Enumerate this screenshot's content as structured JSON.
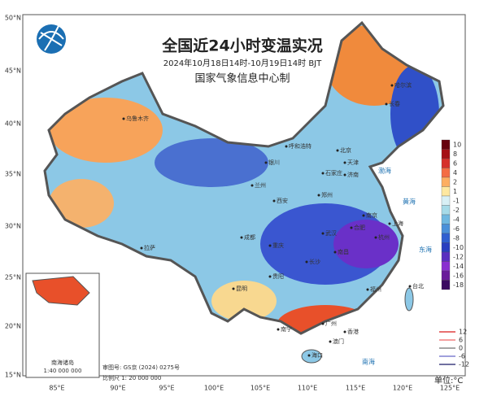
{
  "header": {
    "title": "全国近24小时变温实况",
    "subtitle": "2024年10月18日14时-10月19日14时 BJT",
    "org": "国家气象信息中心制"
  },
  "lat_labels": [
    "50°N",
    "45°N",
    "40°N",
    "35°N",
    "30°N",
    "25°N",
    "20°N",
    "15°N"
  ],
  "lon_labels": [
    "85°E",
    "90°E",
    "95°E",
    "100°E",
    "105°E",
    "110°E",
    "115°E",
    "120°E",
    "125°E"
  ],
  "colorbar": {
    "values": [
      10,
      8,
      6,
      4,
      2,
      1,
      -1,
      -2,
      -4,
      -6,
      -8,
      -10,
      -12,
      -14,
      -16,
      -18
    ],
    "colors": [
      "#67000d",
      "#a50f15",
      "#d6302a",
      "#f46d43",
      "#fdae61",
      "#fee8a0",
      "#d8f0f5",
      "#a6dbe8",
      "#6fb8e0",
      "#4a90d9",
      "#3060d0",
      "#2a3fc0",
      "#5a2fc0",
      "#8a30d0",
      "#6a1b9a",
      "#3a0a60"
    ]
  },
  "isolines": {
    "values": [
      12,
      6,
      0,
      -6,
      -12
    ],
    "colors": [
      "#e04040",
      "#f08080",
      "#888888",
      "#8080d0",
      "#404080"
    ]
  },
  "unit": "单位:°C",
  "notes": {
    "approval": "审图号: GS京 (2024) 0275号",
    "scale": "比例尺 1: 20 000 000",
    "inset_title": "南海诸岛",
    "inset_scale": "1:40 000 000"
  },
  "places": [
    "哈尔滨",
    "长春",
    "北京",
    "天津",
    "石家庄",
    "济南",
    "呼和浩特",
    "乌鲁木齐",
    "银川",
    "兰州",
    "西安",
    "郑州",
    "南京",
    "合肥",
    "上海",
    "杭州",
    "武汉",
    "长沙",
    "南昌",
    "福州",
    "成都",
    "重庆",
    "贵阳",
    "昆明",
    "拉萨",
    "南宁",
    "广州",
    "香港",
    "澳门",
    "海口",
    "台北"
  ],
  "seas": [
    "渤海",
    "黄海",
    "东海",
    "南海"
  ]
}
